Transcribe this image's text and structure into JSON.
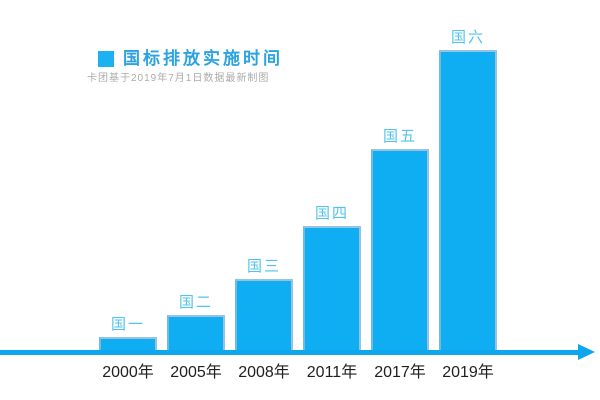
{
  "chart_data": {
    "type": "bar",
    "title": "国标排放实施时间",
    "subtitle": "卡团基于2019年7月1日数据最新制图",
    "categories": [
      "2000年",
      "2005年",
      "2008年",
      "2011年",
      "2017年",
      "2019年"
    ],
    "bar_labels": [
      "国一",
      "国二",
      "国三",
      "国四",
      "国五",
      "国六"
    ],
    "series": [
      {
        "name": "国标排放实施时间",
        "values": [
          13,
          35,
          71,
          124,
          201,
          300
        ]
      }
    ],
    "value_note": "relative bar heights in px, no y-axis shown",
    "ylim": [
      0,
      300
    ],
    "grid": false,
    "legend_position": "top-left",
    "x_axis_style": "arrow-right",
    "colors": {
      "bar_fill": "#0fadf2",
      "bar_edge": "#bac9dc",
      "legend_swatch": "#1cb2f2",
      "title_text": "#2ba3e3",
      "bar_label_text": "#52c3ee",
      "axis": "#0ea6ec",
      "tick_label_text": "#1f1f1f",
      "subtitle_text": "#ababab"
    }
  }
}
